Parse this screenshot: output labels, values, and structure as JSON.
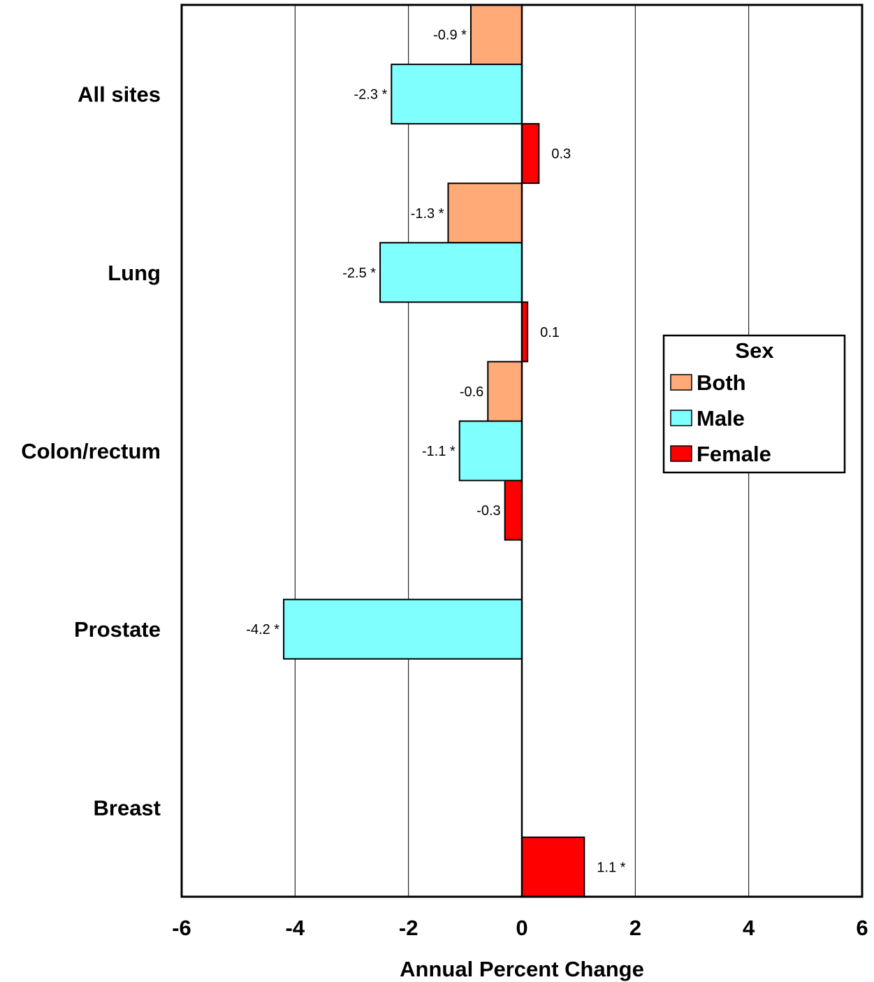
{
  "chart_data": {
    "type": "bar",
    "orientation": "horizontal",
    "categories": [
      "All sites",
      "Lung",
      "Colon/rectum",
      "Prostate",
      "Breast"
    ],
    "series": [
      {
        "name": "Both",
        "color": "#FFAA77",
        "values": [
          -0.9,
          -1.3,
          -0.6,
          null,
          null
        ],
        "labels": [
          "-0.9 *",
          "-1.3 *",
          "-0.6",
          "",
          ""
        ]
      },
      {
        "name": "Male",
        "color": "#80FFFF",
        "values": [
          -2.3,
          -2.5,
          -1.1,
          -4.2,
          null
        ],
        "labels": [
          "-2.3 *",
          "-2.5 *",
          "-1.1 *",
          "-4.2 *",
          ""
        ]
      },
      {
        "name": "Female",
        "color": "#FF0000",
        "values": [
          0.3,
          0.1,
          -0.3,
          null,
          1.1
        ],
        "labels": [
          "0.3",
          "0.1",
          "-0.3",
          "",
          "1.1 *"
        ]
      }
    ],
    "xlabel": "Annual Percent Change",
    "xlim": [
      -6,
      6
    ],
    "xticks": [
      "-6",
      "-4",
      "-2",
      "0",
      "2",
      "4",
      "6"
    ],
    "grid": "vertical",
    "legend": {
      "title": "Sex",
      "position": "right",
      "entries": [
        "Both",
        "Male",
        "Female"
      ]
    }
  }
}
